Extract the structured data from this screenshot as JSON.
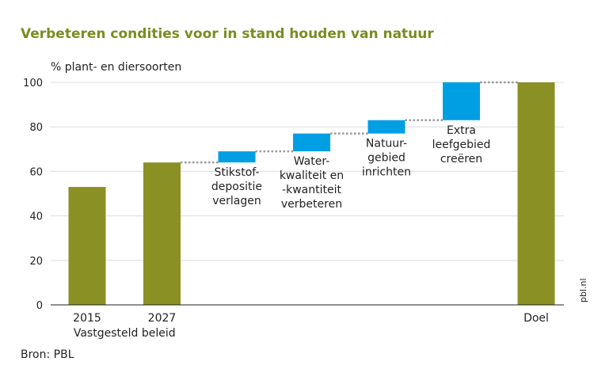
{
  "chart_data": {
    "type": "bar",
    "subtype": "waterfall",
    "title": "Verbeteren condities voor in stand houden van natuur",
    "ylabel": "% plant- en diersoorten",
    "xlabel": "",
    "ylim": [
      0,
      100
    ],
    "yticks": [
      "0",
      "20",
      "40",
      "60",
      "80",
      "100"
    ],
    "grid": true,
    "bars": [
      {
        "label_lines": [
          "2015"
        ],
        "base": 0,
        "value": 53,
        "kind": "total"
      },
      {
        "label_lines": [
          "2027"
        ],
        "base": 0,
        "value": 64,
        "kind": "total"
      },
      {
        "label_lines": [
          "Stikstof-",
          "depositie",
          "verlagen"
        ],
        "base": 64,
        "value": 69,
        "kind": "step"
      },
      {
        "label_lines": [
          "Water-",
          "kwaliteit en",
          "-kwantiteit",
          "verbeteren"
        ],
        "base": 69,
        "value": 77,
        "kind": "step"
      },
      {
        "label_lines": [
          "Natuur-",
          "gebied",
          "inrichten"
        ],
        "base": 77,
        "value": 83,
        "kind": "step"
      },
      {
        "label_lines": [
          "Extra",
          "leefgebied",
          "creëren"
        ],
        "base": 83,
        "value": 100,
        "kind": "step"
      },
      {
        "label_lines": [
          "Doel"
        ],
        "base": 0,
        "value": 100,
        "kind": "total"
      }
    ],
    "group_label": "Vastgesteld beleid",
    "colors": {
      "total": "#8a9023",
      "step": "#009fe3",
      "grid": "#dcdcdc",
      "connector": "#999999",
      "axis": "#222222"
    }
  },
  "source": "Bron: PBL",
  "watermark": "pbl.nl"
}
